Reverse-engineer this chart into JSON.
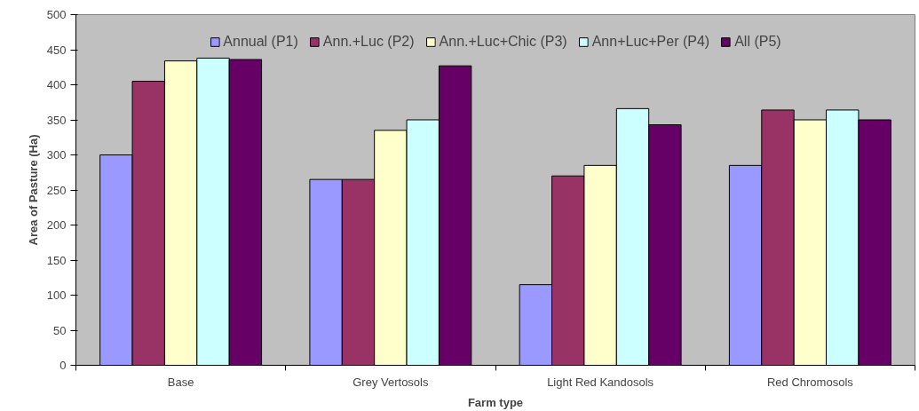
{
  "chart_data": {
    "type": "bar",
    "xlabel": "Farm type",
    "ylabel": "Area of Pasture (Ha)",
    "categories": [
      "Base",
      "Grey Vertosols",
      "Light Red Kandosols",
      "Red Chromosols"
    ],
    "series": [
      {
        "name": "Annual (P1)",
        "color": "#9999ff",
        "values": [
          300,
          265,
          115,
          285
        ]
      },
      {
        "name": "Ann.+Luc (P2)",
        "color": "#993366",
        "values": [
          405,
          265,
          270,
          364
        ]
      },
      {
        "name": "Ann.+Luc+Chic (P3)",
        "color": "#ffffcc",
        "values": [
          434,
          335,
          285,
          350
        ]
      },
      {
        "name": "Ann+Luc+Per (P4)",
        "color": "#ccffff",
        "values": [
          438,
          350,
          366,
          364
        ]
      },
      {
        "name": "All (P5)",
        "color": "#660066",
        "values": [
          436,
          427,
          343,
          350
        ]
      }
    ],
    "ylim": [
      0,
      500
    ],
    "yticks": [
      0,
      50,
      100,
      150,
      200,
      250,
      300,
      350,
      400,
      450,
      500
    ],
    "grid": false,
    "legend": "top"
  }
}
